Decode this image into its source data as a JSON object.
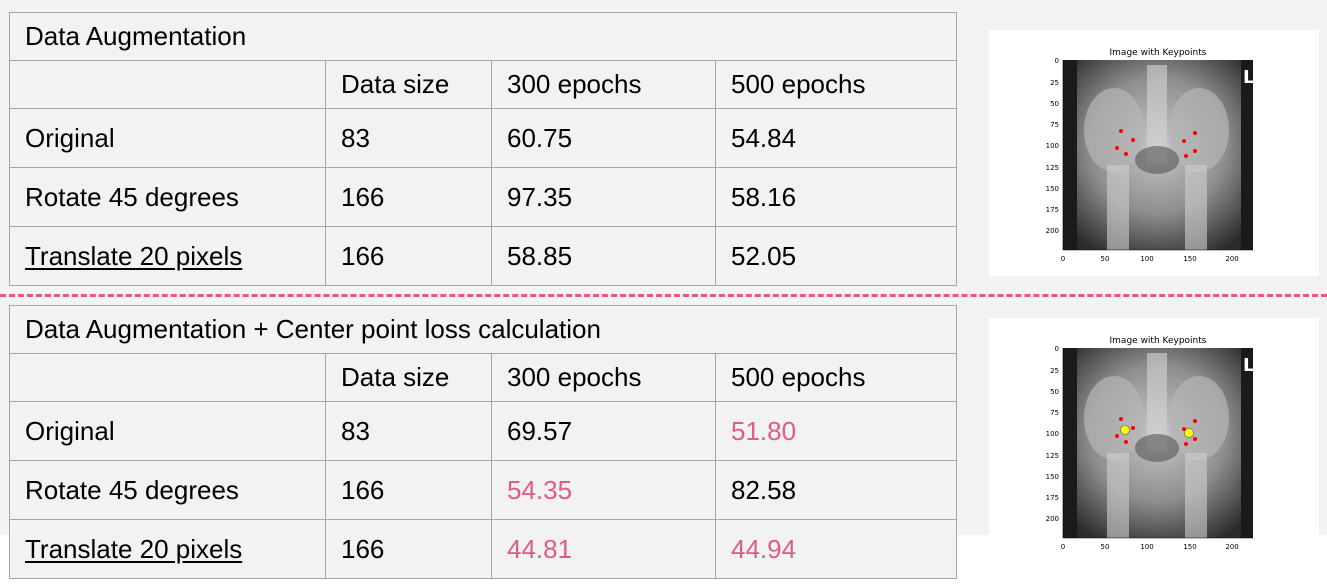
{
  "table_top": {
    "title": "Data Augmentation",
    "columns": [
      "",
      "Data size",
      "300 epochs",
      "500 epochs"
    ],
    "rows": [
      {
        "label": "Original",
        "size": "83",
        "e300": "60.75",
        "e500": "54.84"
      },
      {
        "label": "Rotate 45 degrees",
        "size": "166",
        "e300": "97.35",
        "e500": "58.16"
      },
      {
        "label": "Translate 20 pixels",
        "size": "166",
        "e300": "58.85",
        "e500": "52.05"
      }
    ]
  },
  "table_bottom": {
    "title": "Data Augmentation + Center point loss calculation",
    "columns": [
      "",
      "Data size",
      "300 epochs",
      "500 epochs"
    ],
    "rows": [
      {
        "label": "Original",
        "size": "83",
        "e300": "69.57",
        "e500": "51.80"
      },
      {
        "label": "Rotate 45 degrees",
        "size": "166",
        "e300": "54.35",
        "e500": "82.58"
      },
      {
        "label": "Translate 20 pixels",
        "size": "166",
        "e300": "44.81",
        "e500": "44.94"
      }
    ]
  },
  "highlight_color": "#e05a8a",
  "divider_color": "#e6568a",
  "figure_top": {
    "title": "Image with Keypoints",
    "x_ticks": [
      "0",
      "50",
      "100",
      "150",
      "200"
    ],
    "y_ticks": [
      "0",
      "25",
      "50",
      "75",
      "100",
      "125",
      "150",
      "175",
      "200"
    ],
    "image_letter": "L"
  },
  "figure_bottom": {
    "title": "Image with Keypoints",
    "x_ticks": [
      "0",
      "50",
      "100",
      "150",
      "200"
    ],
    "y_ticks": [
      "0",
      "25",
      "50",
      "75",
      "100",
      "125",
      "150",
      "175",
      "200"
    ],
    "image_letter": "L"
  }
}
